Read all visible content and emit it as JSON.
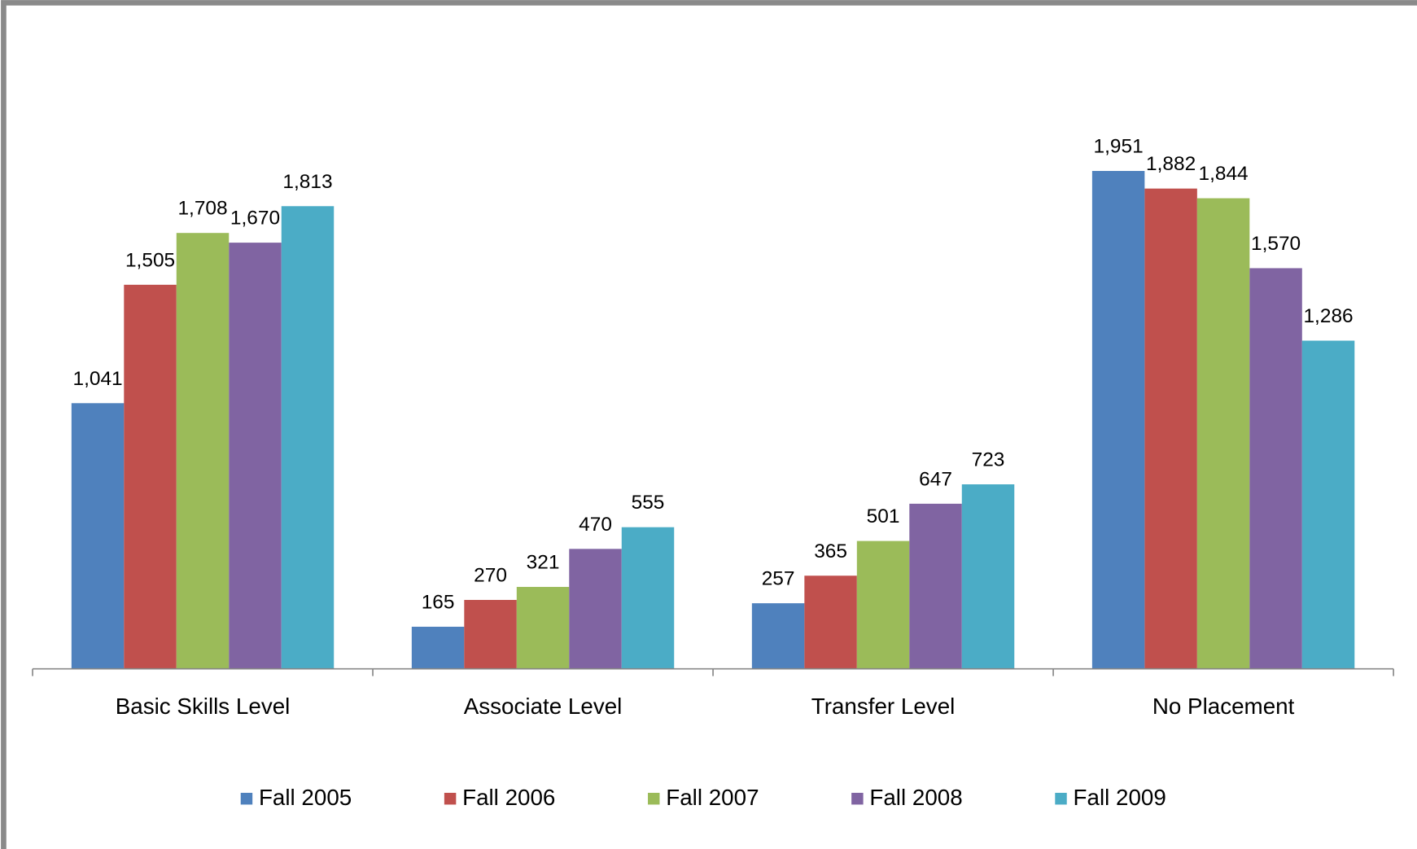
{
  "chart_data": {
    "type": "bar",
    "categories": [
      "Basic Skills Level",
      "Associate Level",
      "Transfer Level",
      "No Placement"
    ],
    "series": [
      {
        "name": "Fall 2005",
        "color": "#4f81bd",
        "values": [
          1041,
          165,
          257,
          1951
        ],
        "value_labels": [
          "1,041",
          "165",
          "257",
          "1,951"
        ]
      },
      {
        "name": "Fall 2006",
        "color": "#c0504d",
        "values": [
          1505,
          270,
          365,
          1882
        ],
        "value_labels": [
          "1,505",
          "270",
          "365",
          "1,882"
        ]
      },
      {
        "name": "Fall 2007",
        "color": "#9bbb59",
        "values": [
          1708,
          321,
          501,
          1844
        ],
        "value_labels": [
          "1,708",
          "321",
          "501",
          "1,844"
        ]
      },
      {
        "name": "Fall 2008",
        "color": "#8064a2",
        "values": [
          1670,
          470,
          647,
          1570
        ],
        "value_labels": [
          "1,670",
          "470",
          "647",
          "1,570"
        ]
      },
      {
        "name": "Fall 2009",
        "color": "#4bacc6",
        "values": [
          1813,
          555,
          723,
          1286
        ],
        "value_labels": [
          "1,813",
          "555",
          "723",
          "1,286"
        ]
      }
    ],
    "ylim": [
      0,
      2500
    ],
    "grid": false,
    "legend": "bottom"
  }
}
